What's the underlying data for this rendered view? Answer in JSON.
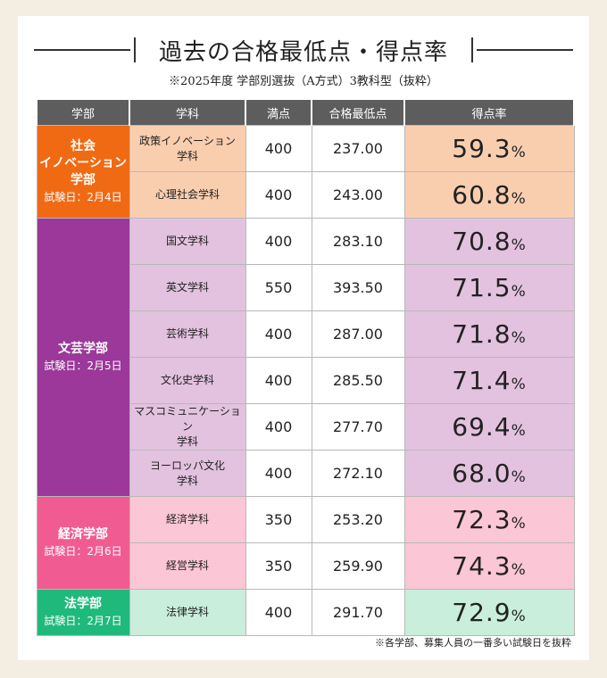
{
  "title": "過去の合格最低点・得点率",
  "subtitle": "※2025年度 学部別選抜（A方式）3教科型（抜粋）",
  "headers": [
    "学部",
    "学科",
    "満点",
    "合格最低点",
    "得点率"
  ],
  "percent_sign": "%",
  "colors": {
    "header": "#5d5d5d",
    "social_dept": "#f06a13",
    "social_row": "#f9ceaf",
    "letters_dept": "#9b3899",
    "letters_row": "#e3c2df",
    "econ_dept": "#f05c91",
    "econ_row": "#fbc6d6",
    "law_dept": "#1fba7b",
    "law_row": "#c9eedb"
  },
  "departments": [
    {
      "name_lines": [
        "社会",
        "イノベーション",
        "学部"
      ],
      "date": "試験日：2月4日",
      "color_key": "social",
      "rows": [
        {
          "subject_lines": [
            "政策イノベーション",
            "学科"
          ],
          "max": "400",
          "min": "237.00",
          "rate": "59.3"
        },
        {
          "subject_lines": [
            "心理社会学科"
          ],
          "max": "400",
          "min": "243.00",
          "rate": "60.8"
        }
      ]
    },
    {
      "name_lines": [
        "文芸学部"
      ],
      "date": "試験日：2月5日",
      "color_key": "letters",
      "rows": [
        {
          "subject_lines": [
            "国文学科"
          ],
          "max": "400",
          "min": "283.10",
          "rate": "70.8"
        },
        {
          "subject_lines": [
            "英文学科"
          ],
          "max": "550",
          "min": "393.50",
          "rate": "71.5"
        },
        {
          "subject_lines": [
            "芸術学科"
          ],
          "max": "400",
          "min": "287.00",
          "rate": "71.8"
        },
        {
          "subject_lines": [
            "文化史学科"
          ],
          "max": "400",
          "min": "285.50",
          "rate": "71.4"
        },
        {
          "subject_lines": [
            "マスコミュニケーション",
            "学科"
          ],
          "max": "400",
          "min": "277.70",
          "rate": "69.4"
        },
        {
          "subject_lines": [
            "ヨーロッパ文化",
            "学科"
          ],
          "max": "400",
          "min": "272.10",
          "rate": "68.0"
        }
      ]
    },
    {
      "name_lines": [
        "経済学部"
      ],
      "date": "試験日：2月6日",
      "color_key": "econ",
      "rows": [
        {
          "subject_lines": [
            "経済学科"
          ],
          "max": "350",
          "min": "253.20",
          "rate": "72.3"
        },
        {
          "subject_lines": [
            "経営学科"
          ],
          "max": "350",
          "min": "259.90",
          "rate": "74.3"
        }
      ]
    },
    {
      "name_lines": [
        "法学部"
      ],
      "date": "試験日：2月7日",
      "color_key": "law",
      "rows": [
        {
          "subject_lines": [
            "法律学科"
          ],
          "max": "400",
          "min": "291.70",
          "rate": "72.9"
        }
      ]
    }
  ],
  "footnote": "※各学部、募集人員の一番多い試験日を抜粋"
}
